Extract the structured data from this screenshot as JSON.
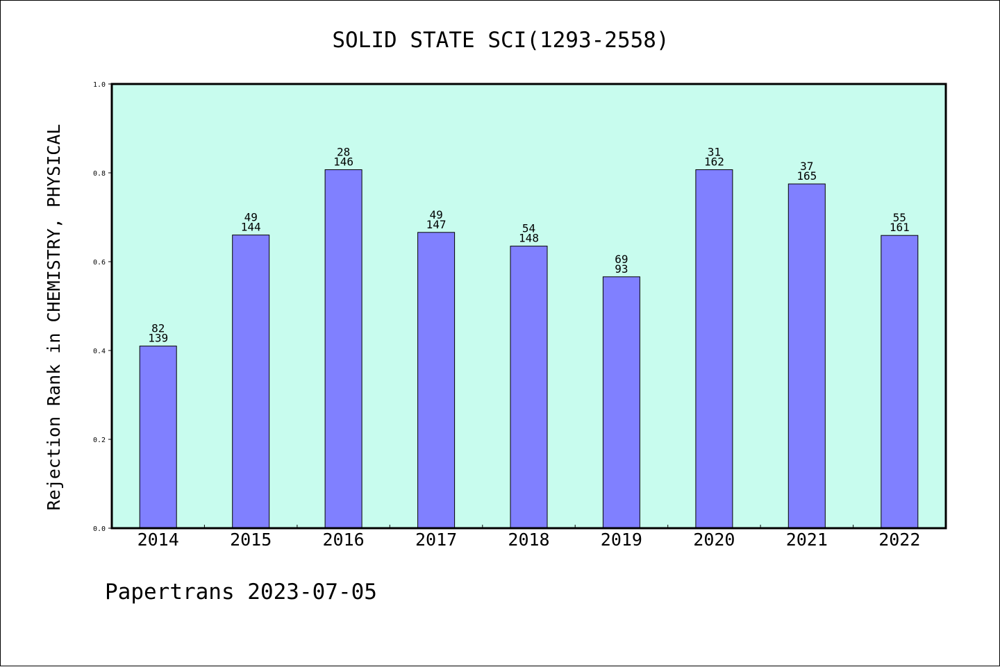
{
  "chart_data": {
    "type": "bar",
    "title": "SOLID STATE SCI(1293-2558)",
    "xlabel": "",
    "ylabel": "Rejection Rank in CHEMISTRY, PHYSICAL",
    "ylim": [
      0.0,
      1.0
    ],
    "yticks": [
      "0.0",
      "0.2",
      "0.4",
      "0.6",
      "0.8",
      "1.0"
    ],
    "categories": [
      "2014",
      "2015",
      "2016",
      "2017",
      "2018",
      "2019",
      "2020",
      "2021",
      "2022"
    ],
    "values": [
      0.41,
      0.66,
      0.807,
      0.666,
      0.635,
      0.566,
      0.807,
      0.775,
      0.659
    ],
    "labels_top": [
      "82",
      "49",
      "28",
      "49",
      "54",
      "69",
      "31",
      "37",
      "55"
    ],
    "labels_bottom": [
      "139",
      "144",
      "146",
      "147",
      "148",
      "93",
      "162",
      "165",
      "161"
    ],
    "grid": false,
    "colors": {
      "bar": "#8080ff",
      "plot_background": "#c8fcee",
      "border": "#000000"
    }
  },
  "footer": {
    "text": "Papertrans 2023-07-05"
  }
}
